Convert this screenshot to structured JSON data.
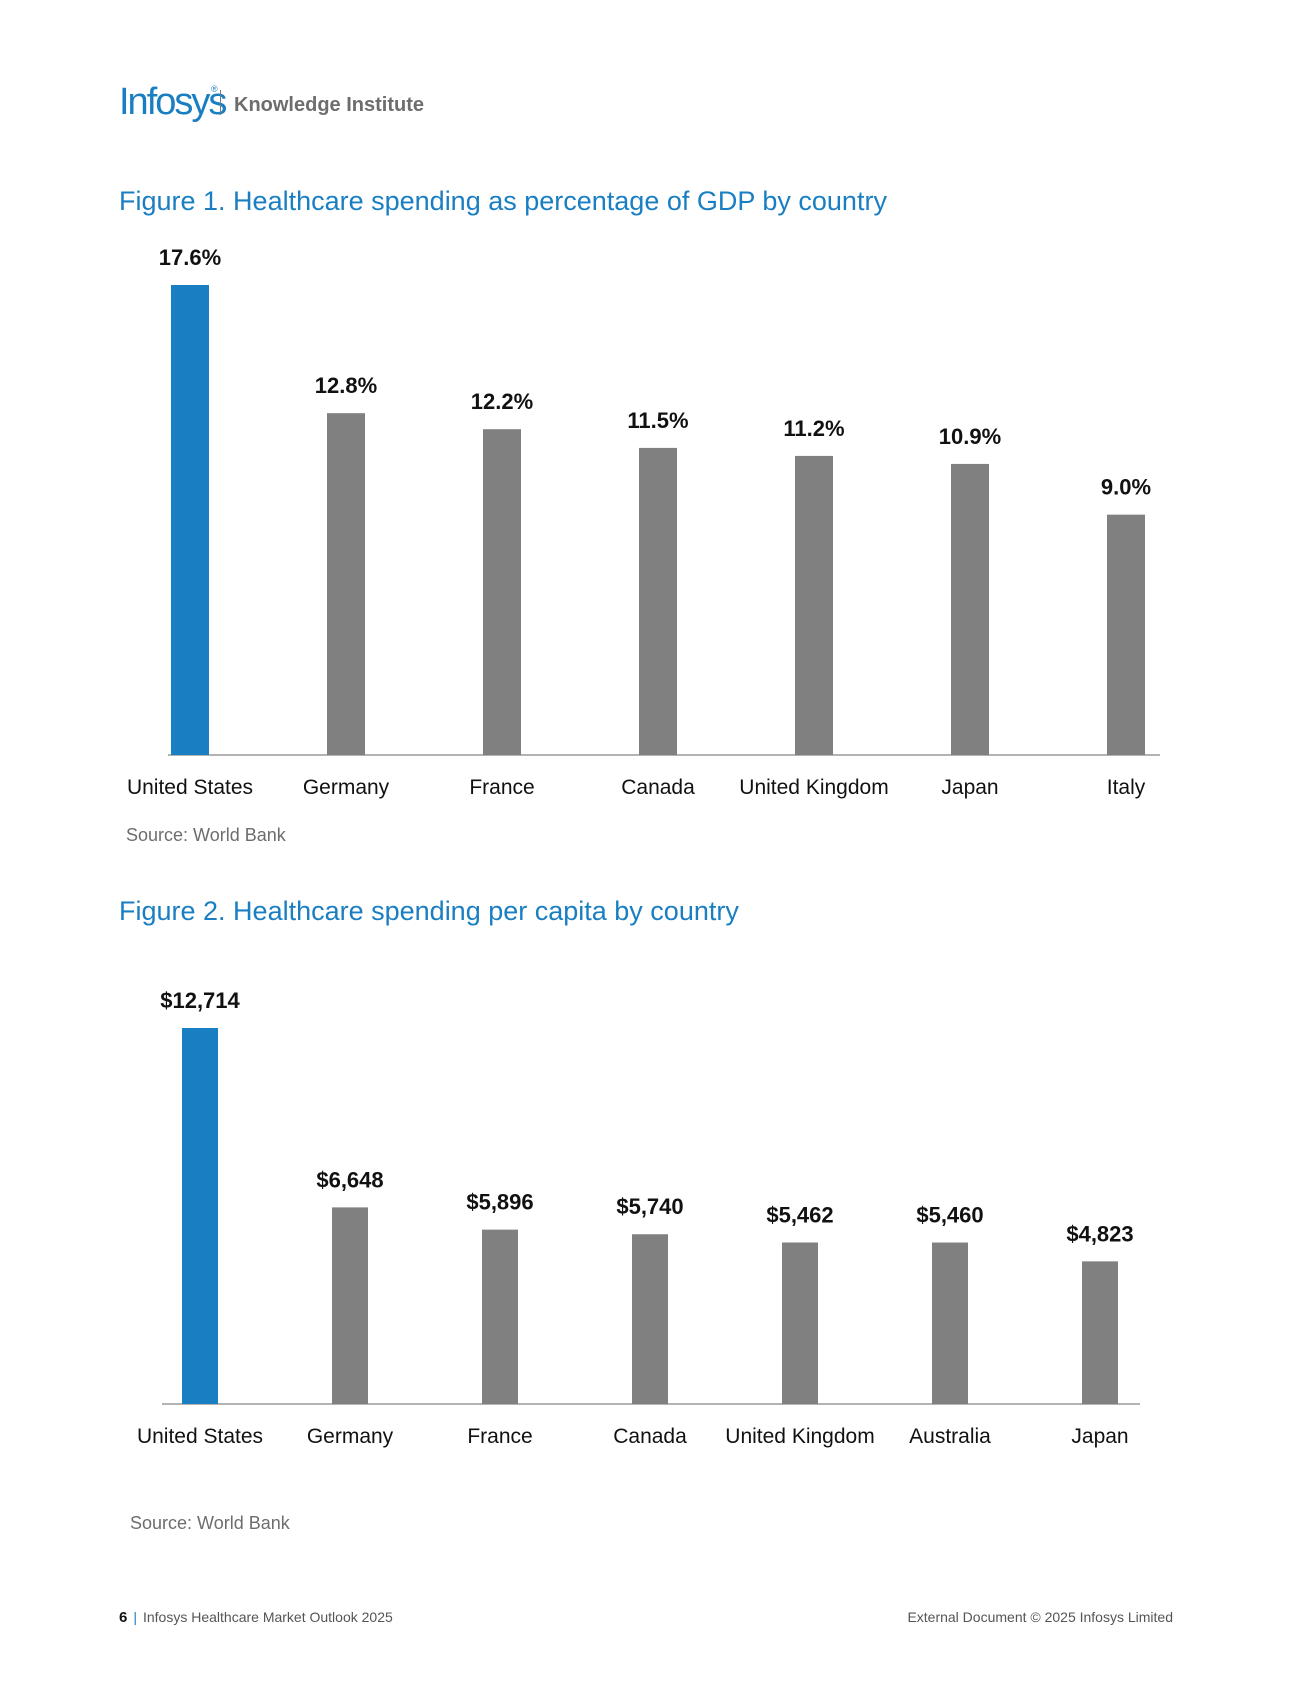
{
  "header": {
    "logo_text": "Infosys",
    "logo_mark": "®",
    "subtitle": "Knowledge Institute"
  },
  "colors": {
    "accent": "#1a7ec2",
    "bar_gray": "#808080",
    "axis": "#9a9a9a"
  },
  "figures": [
    {
      "title": "Figure 1. Healthcare spending as percentage of GDP by country",
      "source": "Source: World Bank"
    },
    {
      "title": "Figure 2. Healthcare spending per capita by country",
      "source": "Source: World Bank"
    }
  ],
  "chart_data": [
    {
      "type": "bar",
      "title": "Figure 1. Healthcare spending as percentage of GDP by country",
      "categories": [
        "United States",
        "Germany",
        "France",
        "Canada",
        "United Kingdom",
        "Japan",
        "Italy"
      ],
      "values": [
        17.6,
        12.8,
        12.2,
        11.5,
        11.2,
        10.9,
        9.0
      ],
      "value_labels": [
        "17.6%",
        "12.8%",
        "12.2%",
        "11.5%",
        "11.2%",
        "10.9%",
        "9.0%"
      ],
      "highlight_index": 0,
      "xlabel": "",
      "ylabel": "",
      "ylim": [
        0,
        17.6
      ],
      "grid": false,
      "source": "Source: World Bank"
    },
    {
      "type": "bar",
      "title": "Figure 2. Healthcare spending per capita by country",
      "categories": [
        "United States",
        "Germany",
        "France",
        "Canada",
        "United Kingdom",
        "Australia",
        "Japan"
      ],
      "values": [
        12714,
        6648,
        5896,
        5740,
        5462,
        5460,
        4823
      ],
      "value_labels": [
        "$12,714",
        "$6,648",
        "$5,896",
        "$5,740",
        "$5,462",
        "$5,460",
        "$4,823"
      ],
      "highlight_index": 0,
      "xlabel": "",
      "ylabel": "",
      "ylim": [
        0,
        12714
      ],
      "grid": false,
      "source": "Source: World Bank"
    }
  ],
  "footer": {
    "page_number": "6",
    "separator": "|",
    "doc_title": "Infosys Healthcare Market Outlook 2025",
    "copyright": "External Document © 2025 Infosys Limited"
  }
}
